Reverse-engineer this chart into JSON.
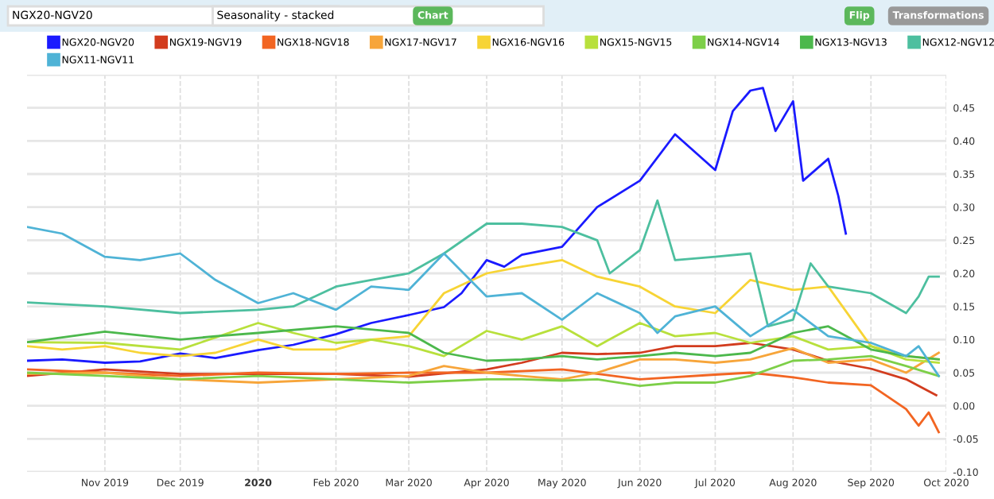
{
  "chart_data": {
    "type": "line",
    "annotations": [
      "NGX20-NGV20",
      "Seasonality - stacked",
      "Chart",
      "Flip",
      "Transformations"
    ],
    "xlim": [
      "2019-10-01",
      "2020-10-01"
    ],
    "xticks": [
      {
        "value": "2019-11-01",
        "label": "Nov 2019"
      },
      {
        "value": "2019-12-01",
        "label": "Dec 2019"
      },
      {
        "value": "2020-01-01",
        "label": "2020"
      },
      {
        "value": "2020-02-01",
        "label": "Feb 2020"
      },
      {
        "value": "2020-03-01",
        "label": "Mar 2020"
      },
      {
        "value": "2020-04-01",
        "label": "Apr 2020"
      },
      {
        "value": "2020-05-01",
        "label": "May 2020"
      },
      {
        "value": "2020-06-01",
        "label": "Jun 2020"
      },
      {
        "value": "2020-07-01",
        "label": "Jul 2020"
      },
      {
        "value": "2020-08-01",
        "label": "Aug 2020"
      },
      {
        "value": "2020-09-01",
        "label": "Sep 2020"
      },
      {
        "value": "2020-10-01",
        "label": "Oct 2020"
      }
    ],
    "ylim": [
      -0.1,
      0.5
    ],
    "yticks": [
      {
        "value": -0.1,
        "label": "-0.10"
      },
      {
        "value": -0.05,
        "label": "-0.05"
      },
      {
        "value": 0,
        "label": "0.00"
      },
      {
        "value": 0.05,
        "label": "0.05"
      },
      {
        "value": 0.1,
        "label": "0.10"
      },
      {
        "value": 0.15,
        "label": "0.15"
      },
      {
        "value": 0.2,
        "label": "0.20"
      },
      {
        "value": 0.25,
        "label": "0.25"
      },
      {
        "value": 0.3,
        "label": "0.30"
      },
      {
        "value": 0.35,
        "label": "0.35"
      },
      {
        "value": 0.4,
        "label": "0.40"
      },
      {
        "value": 0.45,
        "label": "0.45"
      },
      {
        "value": 0.5,
        "label": null
      }
    ],
    "grid": true,
    "legend": "top",
    "marker": "none",
    "line_style": "solid",
    "series": [
      {
        "name": "NGX20-NGV20",
        "color": "#1a1aff",
        "x": [
          "2019-10-01",
          "2019-10-15",
          "2019-11-01",
          "2019-11-15",
          "2019-12-01",
          "2019-12-15",
          "2020-01-01",
          "2020-01-15",
          "2020-02-01",
          "2020-02-15",
          "2020-03-01",
          "2020-03-15",
          "2020-03-22",
          "2020-04-01",
          "2020-04-08",
          "2020-04-15",
          "2020-05-01",
          "2020-05-15",
          "2020-06-01",
          "2020-06-15",
          "2020-07-01",
          "2020-07-08",
          "2020-07-15",
          "2020-07-20",
          "2020-07-25",
          "2020-08-01",
          "2020-08-05",
          "2020-08-15",
          "2020-08-19",
          "2020-08-22"
        ],
        "values": [
          0.068,
          0.07,
          0.065,
          0.067,
          0.079,
          0.072,
          0.084,
          0.092,
          0.108,
          0.125,
          0.137,
          0.149,
          0.17,
          0.22,
          0.21,
          0.228,
          0.24,
          0.3,
          0.34,
          0.41,
          0.356,
          0.445,
          0.476,
          0.48,
          0.415,
          0.46,
          0.34,
          0.373,
          0.317,
          0.26
        ]
      },
      {
        "name": "NGX19-NGV19",
        "color": "#d23c1e",
        "x": [
          "2019-10-01",
          "2019-11-01",
          "2019-12-01",
          "2020-01-01",
          "2020-02-01",
          "2020-03-01",
          "2020-04-01",
          "2020-04-15",
          "2020-05-01",
          "2020-05-15",
          "2020-06-01",
          "2020-06-15",
          "2020-07-01",
          "2020-07-15",
          "2020-08-01",
          "2020-08-15",
          "2020-09-01",
          "2020-09-15",
          "2020-09-27"
        ],
        "values": [
          0.045,
          0.055,
          0.048,
          0.048,
          0.048,
          0.044,
          0.055,
          0.065,
          0.08,
          0.078,
          0.08,
          0.09,
          0.09,
          0.095,
          0.085,
          0.068,
          0.056,
          0.04,
          0.016
        ]
      },
      {
        "name": "NGX18-NGV18",
        "color": "#f26522",
        "x": [
          "2019-10-01",
          "2019-11-01",
          "2019-12-01",
          "2020-01-01",
          "2020-02-01",
          "2020-03-01",
          "2020-04-01",
          "2020-05-01",
          "2020-06-01",
          "2020-07-01",
          "2020-07-15",
          "2020-08-01",
          "2020-08-15",
          "2020-09-01",
          "2020-09-15",
          "2020-09-20",
          "2020-09-24",
          "2020-09-28"
        ],
        "values": [
          0.055,
          0.05,
          0.045,
          0.05,
          0.048,
          0.05,
          0.05,
          0.055,
          0.04,
          0.047,
          0.05,
          0.043,
          0.035,
          0.031,
          -0.005,
          -0.03,
          -0.01,
          -0.04
        ]
      },
      {
        "name": "NGX17-NGV17",
        "color": "#f7a53a",
        "x": [
          "2019-10-01",
          "2019-11-01",
          "2019-12-01",
          "2020-01-01",
          "2020-02-01",
          "2020-03-01",
          "2020-03-15",
          "2020-04-01",
          "2020-04-15",
          "2020-05-01",
          "2020-05-15",
          "2020-06-01",
          "2020-06-15",
          "2020-07-01",
          "2020-07-15",
          "2020-08-01",
          "2020-08-15",
          "2020-09-01",
          "2020-09-15",
          "2020-09-28"
        ],
        "values": [
          0.048,
          0.05,
          0.04,
          0.035,
          0.04,
          0.045,
          0.06,
          0.05,
          0.045,
          0.04,
          0.05,
          0.07,
          0.07,
          0.065,
          0.07,
          0.087,
          0.065,
          0.07,
          0.05,
          0.08
        ]
      },
      {
        "name": "NGX16-NGV16",
        "color": "#f7d435",
        "x": [
          "2019-10-01",
          "2019-10-15",
          "2019-11-01",
          "2019-11-15",
          "2019-12-01",
          "2019-12-15",
          "2020-01-01",
          "2020-01-15",
          "2020-02-01",
          "2020-02-15",
          "2020-03-01",
          "2020-03-15",
          "2020-04-01",
          "2020-04-15",
          "2020-05-01",
          "2020-05-15",
          "2020-06-01",
          "2020-06-15",
          "2020-07-01",
          "2020-07-15",
          "2020-08-01",
          "2020-08-15",
          "2020-09-01",
          "2020-09-15",
          "2020-09-28"
        ],
        "values": [
          0.09,
          0.085,
          0.09,
          0.08,
          0.075,
          0.08,
          0.1,
          0.085,
          0.085,
          0.1,
          0.105,
          0.17,
          0.2,
          0.21,
          0.22,
          0.195,
          0.18,
          0.15,
          0.14,
          0.19,
          0.175,
          0.18,
          0.09,
          0.075,
          0.07
        ]
      },
      {
        "name": "NGX15-NGV15",
        "color": "#b8e03c",
        "x": [
          "2019-10-01",
          "2019-11-01",
          "2019-12-01",
          "2020-01-01",
          "2020-01-15",
          "2020-02-01",
          "2020-02-15",
          "2020-03-01",
          "2020-03-15",
          "2020-04-01",
          "2020-04-15",
          "2020-05-01",
          "2020-05-15",
          "2020-06-01",
          "2020-06-15",
          "2020-07-01",
          "2020-07-15",
          "2020-08-01",
          "2020-08-15",
          "2020-09-01",
          "2020-09-15",
          "2020-09-28"
        ],
        "values": [
          0.096,
          0.095,
          0.085,
          0.125,
          0.11,
          0.095,
          0.1,
          0.09,
          0.075,
          0.113,
          0.1,
          0.12,
          0.09,
          0.125,
          0.105,
          0.11,
          0.095,
          0.105,
          0.085,
          0.09,
          0.07,
          0.065
        ]
      },
      {
        "name": "NGX14-NGV14",
        "color": "#7dcf48",
        "x": [
          "2019-10-01",
          "2019-11-01",
          "2019-12-01",
          "2020-01-01",
          "2020-02-01",
          "2020-03-01",
          "2020-04-01",
          "2020-04-15",
          "2020-05-01",
          "2020-05-15",
          "2020-06-01",
          "2020-06-15",
          "2020-07-01",
          "2020-07-15",
          "2020-08-01",
          "2020-08-15",
          "2020-09-01",
          "2020-09-15",
          "2020-09-28"
        ],
        "values": [
          0.05,
          0.045,
          0.04,
          0.045,
          0.04,
          0.035,
          0.04,
          0.04,
          0.038,
          0.04,
          0.03,
          0.035,
          0.035,
          0.045,
          0.068,
          0.07,
          0.075,
          0.06,
          0.045
        ]
      },
      {
        "name": "NGX13-NGV13",
        "color": "#4cb84c",
        "x": [
          "2019-10-01",
          "2019-11-01",
          "2019-12-01",
          "2019-12-15",
          "2020-01-01",
          "2020-02-01",
          "2020-03-01",
          "2020-03-15",
          "2020-04-01",
          "2020-04-15",
          "2020-05-01",
          "2020-05-15",
          "2020-06-01",
          "2020-06-15",
          "2020-07-01",
          "2020-07-15",
          "2020-08-01",
          "2020-08-15",
          "2020-09-01",
          "2020-09-15",
          "2020-09-28"
        ],
        "values": [
          0.096,
          0.112,
          0.1,
          0.105,
          0.11,
          0.12,
          0.11,
          0.08,
          0.068,
          0.07,
          0.075,
          0.07,
          0.075,
          0.08,
          0.075,
          0.08,
          0.11,
          0.12,
          0.085,
          0.075,
          0.07
        ]
      },
      {
        "name": "NGX12-NGV12",
        "color": "#4dbf9f",
        "x": [
          "2019-10-01",
          "2019-11-01",
          "2019-12-01",
          "2020-01-01",
          "2020-01-15",
          "2020-02-01",
          "2020-02-15",
          "2020-03-01",
          "2020-03-15",
          "2020-04-01",
          "2020-04-15",
          "2020-05-01",
          "2020-05-15",
          "2020-05-20",
          "2020-06-01",
          "2020-06-08",
          "2020-06-15",
          "2020-07-01",
          "2020-07-15",
          "2020-07-22",
          "2020-08-01",
          "2020-08-08",
          "2020-08-15",
          "2020-09-01",
          "2020-09-15",
          "2020-09-20",
          "2020-09-24",
          "2020-09-28"
        ],
        "values": [
          0.156,
          0.15,
          0.14,
          0.145,
          0.15,
          0.18,
          0.19,
          0.2,
          0.23,
          0.275,
          0.275,
          0.27,
          0.25,
          0.2,
          0.235,
          0.31,
          0.22,
          0.225,
          0.23,
          0.12,
          0.13,
          0.215,
          0.18,
          0.17,
          0.14,
          0.165,
          0.195,
          0.195
        ]
      },
      {
        "name": "NGX11-NGV11",
        "color": "#4fb3d6",
        "x": [
          "2019-10-01",
          "2019-10-15",
          "2019-11-01",
          "2019-11-15",
          "2019-12-01",
          "2019-12-15",
          "2020-01-01",
          "2020-01-15",
          "2020-02-01",
          "2020-02-15",
          "2020-03-01",
          "2020-03-15",
          "2020-04-01",
          "2020-04-15",
          "2020-05-01",
          "2020-05-15",
          "2020-06-01",
          "2020-06-08",
          "2020-06-15",
          "2020-07-01",
          "2020-07-15",
          "2020-08-01",
          "2020-08-15",
          "2020-09-01",
          "2020-09-15",
          "2020-09-20",
          "2020-09-28"
        ],
        "values": [
          0.27,
          0.26,
          0.225,
          0.22,
          0.23,
          0.19,
          0.155,
          0.17,
          0.145,
          0.18,
          0.175,
          0.23,
          0.165,
          0.17,
          0.13,
          0.17,
          0.14,
          0.11,
          0.135,
          0.15,
          0.105,
          0.145,
          0.105,
          0.095,
          0.075,
          0.09,
          0.045
        ]
      }
    ]
  }
}
